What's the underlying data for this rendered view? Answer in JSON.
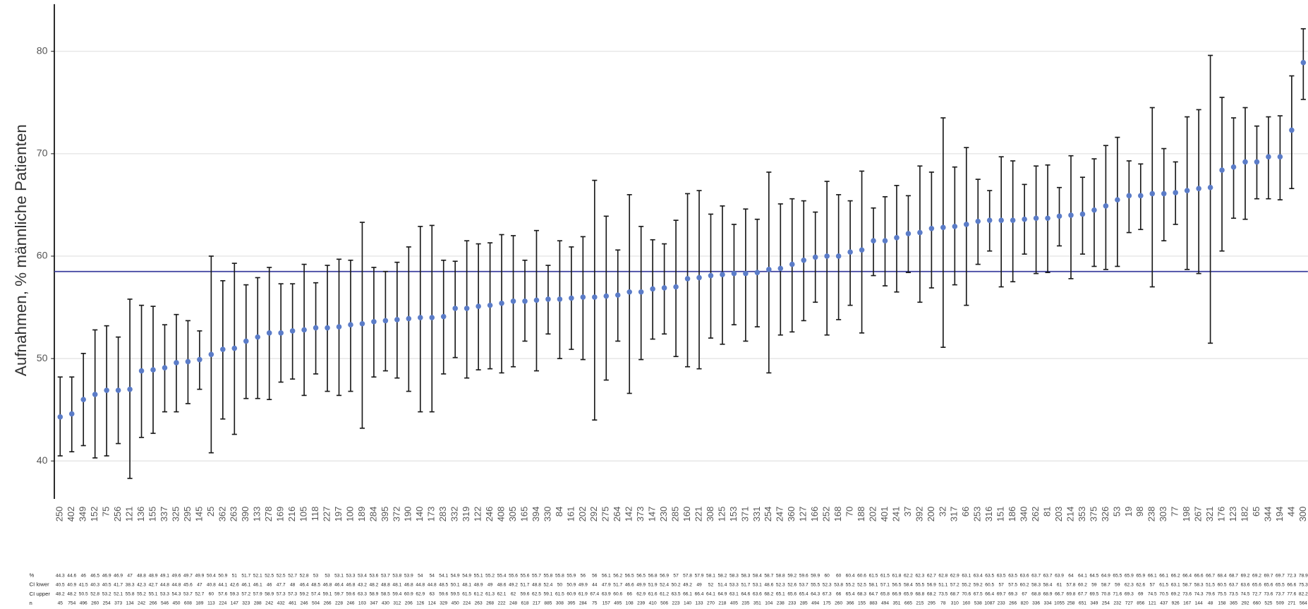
{
  "chart_data": {
    "type": "point_range",
    "y_axis_label": "Aufnahmen, % männliche Patienten",
    "categories": [
      "250",
      "402",
      "349",
      "152",
      "75",
      "256",
      "121",
      "136",
      "155",
      "337",
      "325",
      "295",
      "145",
      "25",
      "362",
      "263",
      "390",
      "133",
      "278",
      "169",
      "216",
      "105",
      "118",
      "227",
      "197",
      "100",
      "189",
      "284",
      "395",
      "372",
      "190",
      "140",
      "173",
      "283",
      "332",
      "319",
      "122",
      "246",
      "408",
      "305",
      "165",
      "394",
      "330",
      "84",
      "161",
      "202",
      "292",
      "275",
      "264",
      "142",
      "373",
      "147",
      "230",
      "285",
      "160",
      "221",
      "308",
      "125",
      "153",
      "371",
      "331",
      "254",
      "247",
      "360",
      "127",
      "166",
      "252",
      "168",
      "70",
      "188",
      "202",
      "401",
      "241",
      "37",
      "392",
      "200",
      "32",
      "317",
      "66",
      "253",
      "316",
      "151",
      "186",
      "340",
      "262",
      "81",
      "203",
      "214",
      "353",
      "375",
      "326",
      "53",
      "19",
      "98",
      "238",
      "303",
      "77",
      "198",
      "267",
      "321",
      "176",
      "123",
      "182",
      "65",
      "344",
      "194",
      "44",
      "300"
    ],
    "values": [
      44.3,
      44.6,
      46.0,
      46.5,
      46.9,
      46.9,
      47.0,
      48.8,
      48.9,
      49.1,
      49.6,
      49.7,
      49.9,
      50.4,
      50.9,
      51.0,
      51.7,
      52.1,
      52.5,
      52.5,
      52.7,
      52.8,
      53.0,
      53.0,
      53.1,
      53.3,
      53.4,
      53.6,
      53.7,
      53.8,
      53.9,
      54.0,
      54.0,
      54.1,
      54.9,
      54.9,
      55.1,
      55.2,
      55.4,
      55.6,
      55.6,
      55.7,
      55.8,
      55.8,
      55.9,
      56.0,
      56.0,
      56.1,
      56.2,
      56.5,
      56.5,
      56.8,
      56.9,
      57.0,
      57.8,
      57.9,
      58.1,
      58.2,
      58.3,
      58.3,
      58.4,
      58.7,
      58.8,
      59.2,
      59.6,
      59.9,
      60.0,
      60.0,
      60.4,
      60.6,
      61.5,
      61.5,
      61.8,
      62.2,
      62.3,
      62.7,
      62.8,
      62.9,
      63.1,
      63.4,
      63.5,
      63.5,
      63.5,
      63.6,
      63.7,
      63.7,
      63.9,
      64.0,
      64.1,
      64.5,
      64.9,
      65.5,
      65.9,
      65.9,
      66.1,
      66.1,
      66.2,
      66.4,
      66.6,
      66.7,
      68.4,
      68.7,
      69.2,
      69.2,
      69.7,
      69.7,
      72.3,
      78.9
    ],
    "ci_lower": [
      40.5,
      40.9,
      41.5,
      40.3,
      40.5,
      41.7,
      38.3,
      42.3,
      42.7,
      44.8,
      44.8,
      45.6,
      47.0,
      40.8,
      44.1,
      42.6,
      46.1,
      46.1,
      46.0,
      47.7,
      48.0,
      46.4,
      48.5,
      46.8,
      46.4,
      46.8,
      43.2,
      48.2,
      48.8,
      48.1,
      46.8,
      44.8,
      44.8,
      48.5,
      50.1,
      48.1,
      48.9,
      49.0,
      48.6,
      49.2,
      51.7,
      48.8,
      52.4,
      50.0,
      50.9,
      49.9,
      44.0,
      47.9,
      51.7,
      46.6,
      49.9,
      51.9,
      52.4,
      50.2,
      49.2,
      49.0,
      52.0,
      51.4,
      53.3,
      51.7,
      53.1,
      48.6,
      52.3,
      52.6,
      53.7,
      55.5,
      52.3,
      53.8,
      55.2,
      52.5,
      58.1,
      57.1,
      56.5,
      58.4,
      55.5,
      56.9,
      51.1,
      57.2,
      55.2,
      59.2,
      60.5,
      57.0,
      57.5,
      60.2,
      58.3,
      58.4,
      61.0,
      57.8,
      60.2,
      59.0,
      58.7,
      59.0,
      62.3,
      62.6,
      57.0,
      61.5,
      63.1,
      58.7,
      58.3,
      51.5,
      60.5,
      63.7,
      63.6,
      65.6,
      65.6,
      65.5,
      66.6,
      75.3
    ],
    "ci_upper": [
      48.2,
      48.2,
      50.5,
      52.8,
      53.2,
      52.1,
      55.8,
      55.2,
      55.1,
      53.3,
      54.3,
      53.7,
      52.7,
      60.0,
      57.6,
      59.3,
      57.2,
      57.9,
      58.9,
      57.3,
      57.3,
      59.2,
      57.4,
      59.1,
      59.7,
      59.6,
      63.3,
      58.9,
      58.5,
      59.4,
      60.9,
      62.9,
      63.0,
      59.6,
      59.5,
      61.5,
      61.2,
      61.3,
      62.1,
      62.0,
      59.6,
      62.5,
      59.1,
      61.5,
      60.9,
      61.9,
      67.4,
      63.9,
      60.6,
      66.0,
      62.9,
      61.6,
      61.2,
      63.5,
      66.1,
      66.4,
      64.1,
      64.9,
      63.1,
      64.6,
      63.6,
      68.2,
      65.1,
      65.6,
      65.4,
      64.3,
      67.3,
      66.0,
      65.4,
      68.3,
      64.7,
      65.8,
      66.9,
      65.9,
      68.8,
      68.2,
      73.5,
      68.7,
      70.6,
      67.5,
      66.4,
      69.7,
      69.3,
      67.0,
      68.8,
      68.9,
      66.7,
      69.8,
      67.7,
      69.5,
      70.8,
      71.6,
      69.3,
      69.0,
      74.5,
      70.5,
      69.2,
      73.6,
      74.3,
      79.6,
      75.5,
      73.5,
      74.5,
      72.7,
      73.6,
      73.7,
      77.6,
      82.2
    ],
    "n": [
      45,
      754,
      496,
      260,
      254,
      373,
      134,
      242,
      266,
      546,
      450,
      608,
      189,
      113,
      224,
      147,
      323,
      288,
      242,
      432,
      461,
      246,
      504,
      266,
      228,
      246,
      103,
      347,
      430,
      312,
      206,
      126,
      124,
      329,
      450,
      224,
      263,
      268,
      222,
      248,
      618,
      217,
      885,
      308,
      395,
      284,
      75,
      157,
      495,
      108,
      239,
      410,
      506,
      223,
      140,
      133,
      270,
      218,
      405,
      235,
      351,
      104,
      238,
      233,
      285,
      494,
      175,
      260,
      366,
      155,
      883,
      494,
      351,
      665,
      215,
      295,
      78,
      310,
      160,
      538,
      1087,
      233,
      266,
      820,
      336,
      334,
      1055,
      258,
      651,
      349,
      254,
      232,
      727,
      856,
      121,
      437,
      926,
      167,
      144,
      48,
      158,
      365,
      292,
      660,
      525,
      509,
      271,
      564
    ],
    "table_row_labels": [
      "%",
      "CI lower",
      "CI upper",
      "n"
    ],
    "reference_line": 58.5,
    "reference_color": "#3a3f9e",
    "color": "#5b7cc8",
    "errorbar_color": "#1a1a1a",
    "ylim": [
      36.3,
      84.6
    ],
    "yticks": [
      40,
      50,
      60,
      70,
      80
    ],
    "grid": true
  }
}
